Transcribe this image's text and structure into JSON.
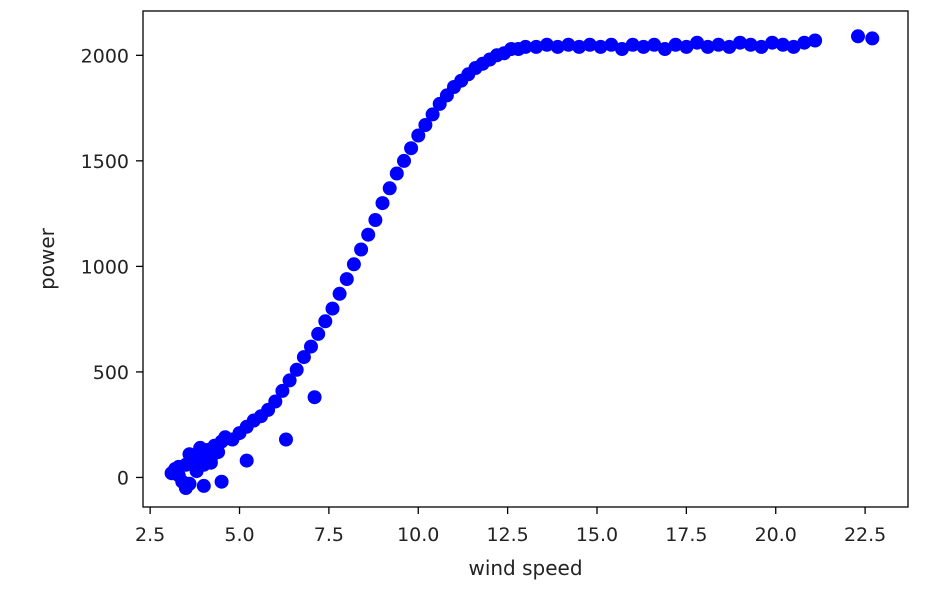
{
  "chart_data": {
    "type": "scatter",
    "title": "",
    "xlabel": "wind speed",
    "ylabel": "power",
    "xlim": [
      2.3,
      23.7
    ],
    "ylim": [
      -140,
      2210
    ],
    "xticks": [
      2.5,
      5.0,
      7.5,
      10.0,
      12.5,
      15.0,
      17.5,
      20.0,
      22.5
    ],
    "xtick_labels": [
      "2.5",
      "5.0",
      "7.5",
      "10.0",
      "12.5",
      "15.0",
      "17.5",
      "20.0",
      "22.5"
    ],
    "yticks": [
      0,
      500,
      1000,
      1500,
      2000
    ],
    "ytick_labels": [
      "0",
      "500",
      "1000",
      "1500",
      "2000"
    ],
    "grid": false,
    "marker_color": "#0000ff",
    "series": [
      {
        "color": "#0000ff",
        "x": [
          3.1,
          3.2,
          3.3,
          3.4,
          3.5,
          3.6,
          3.7,
          3.8,
          3.9,
          4.0,
          4.1,
          4.2,
          4.3,
          4.4,
          4.5,
          3.3,
          3.6,
          3.9,
          4.2,
          4.6,
          4.8,
          5.0,
          5.2,
          5.4,
          5.6,
          5.8,
          6.0,
          6.2,
          6.4,
          6.6,
          6.8,
          7.0,
          7.2,
          7.4,
          7.6,
          7.8,
          8.0,
          8.2,
          8.4,
          8.6,
          8.8,
          9.0,
          9.2,
          9.4,
          9.6,
          9.8,
          10.0,
          10.2,
          10.4,
          10.6,
          10.8,
          11.0,
          11.2,
          11.4,
          11.6,
          11.8,
          12.0,
          12.2,
          12.4,
          12.6,
          12.8,
          13.0,
          13.3,
          13.6,
          13.9,
          14.2,
          14.5,
          14.8,
          15.1,
          15.4,
          15.7,
          16.0,
          16.3,
          16.6,
          16.9,
          17.2,
          17.5,
          17.8,
          18.1,
          18.4,
          18.7,
          19.0,
          19.3,
          19.6,
          19.9,
          20.2,
          20.5,
          20.8,
          21.1,
          22.3,
          22.7,
          5.2,
          6.3,
          7.1,
          3.5,
          4.0,
          4.5
        ],
        "y": [
          20,
          40,
          10,
          -20,
          60,
          -30,
          80,
          30,
          100,
          60,
          130,
          90,
          150,
          120,
          170,
          50,
          110,
          140,
          70,
          190,
          180,
          210,
          240,
          270,
          290,
          320,
          360,
          410,
          460,
          510,
          570,
          620,
          680,
          740,
          800,
          870,
          940,
          1010,
          1080,
          1150,
          1220,
          1300,
          1370,
          1440,
          1500,
          1560,
          1620,
          1670,
          1720,
          1770,
          1810,
          1850,
          1880,
          1910,
          1940,
          1960,
          1980,
          2000,
          2010,
          2030,
          2030,
          2040,
          2040,
          2050,
          2040,
          2050,
          2040,
          2050,
          2040,
          2050,
          2030,
          2050,
          2040,
          2050,
          2030,
          2050,
          2040,
          2060,
          2040,
          2050,
          2040,
          2060,
          2050,
          2040,
          2060,
          2050,
          2040,
          2060,
          2070,
          2090,
          2080,
          80,
          180,
          380,
          -50,
          -40,
          -20
        ]
      }
    ]
  }
}
